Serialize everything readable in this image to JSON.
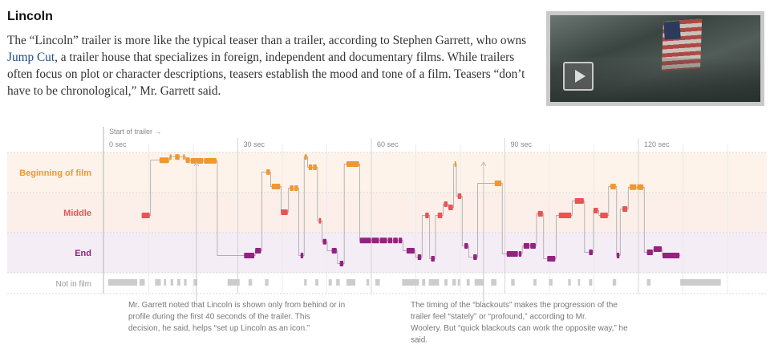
{
  "heading": "Lincoln",
  "intro": {
    "before_link": "The “Lincoln” trailer is more like the typical teaser than a trailer, according to Stephen Garrett, who owns ",
    "link_text": "Jump Cut",
    "after_link": ", a trailer house that specializes in foreign, independent and documentary films. While trailers often focus on plot or character descriptions, teasers establish the mood and tone of a film. Teasers “don’t have to be chronological,” Mr. Garrett said."
  },
  "video": {
    "icon": "play-icon"
  },
  "colors": {
    "beginning": "#f0972f",
    "middle": "#ea5353",
    "end": "#952181",
    "missing": "#cccccc",
    "band_beginning": "#fdf3ea",
    "band_middle": "#fcefea",
    "band_end": "#f5edf5"
  },
  "chart_data": {
    "type": "timeline",
    "start_label": "Start of trailer →",
    "x_ticks": [
      "0 sec",
      "30 sec",
      "60 sec",
      "90 sec",
      "120 sec"
    ],
    "x_tick_values": [
      0,
      30,
      60,
      90,
      120
    ],
    "xlim": [
      0,
      132
    ],
    "rows": [
      "Beginning of film",
      "Middle",
      "End",
      "Not in film"
    ],
    "row_keys": [
      "beginning",
      "middle",
      "end",
      "none"
    ],
    "segments": [
      {
        "start": 7.5,
        "end": 9.5,
        "row": "middle"
      },
      {
        "start": 11.5,
        "end": 13.8,
        "row": "beginning"
      },
      {
        "start": 13.8,
        "end": 14.4,
        "row": "beginning"
      },
      {
        "start": 15.0,
        "end": 16.2,
        "row": "beginning"
      },
      {
        "start": 16.8,
        "end": 17.4,
        "row": "beginning"
      },
      {
        "start": 17.4,
        "end": 18.5,
        "row": "beginning"
      },
      {
        "start": 18.5,
        "end": 21.5,
        "row": "beginning"
      },
      {
        "start": 21.5,
        "end": 24.5,
        "row": "beginning"
      },
      {
        "start": 30.5,
        "end": 33.0,
        "row": "end"
      },
      {
        "start": 33.0,
        "end": 34.5,
        "row": "end"
      },
      {
        "start": 35.5,
        "end": 36.5,
        "row": "beginning"
      },
      {
        "start": 36.7,
        "end": 38.8,
        "row": "beginning"
      },
      {
        "start": 38.8,
        "end": 40.5,
        "row": "middle"
      },
      {
        "start": 40.8,
        "end": 41.8,
        "row": "beginning"
      },
      {
        "start": 41.8,
        "end": 42.8,
        "row": "beginning"
      },
      {
        "start": 43.2,
        "end": 44.0,
        "row": "end"
      },
      {
        "start": 44.1,
        "end": 44.8,
        "row": "beginning"
      },
      {
        "start": 45.0,
        "end": 46.0,
        "row": "beginning"
      },
      {
        "start": 46.0,
        "end": 47.0,
        "row": "beginning"
      },
      {
        "start": 47.3,
        "end": 48.0,
        "row": "middle"
      },
      {
        "start": 48.2,
        "end": 49.2,
        "row": "end"
      },
      {
        "start": 50.2,
        "end": 51.5,
        "row": "end"
      },
      {
        "start": 52.0,
        "end": 53.0,
        "row": "end"
      },
      {
        "start": 53.5,
        "end": 56.5,
        "row": "beginning"
      },
      {
        "start": 56.5,
        "end": 59.2,
        "row": "end"
      },
      {
        "start": 59.2,
        "end": 61.0,
        "row": "end"
      },
      {
        "start": 61.0,
        "end": 62.8,
        "row": "end"
      },
      {
        "start": 62.8,
        "end": 64.0,
        "row": "end"
      },
      {
        "start": 64.0,
        "end": 65.2,
        "row": "end"
      },
      {
        "start": 65.2,
        "end": 66.2,
        "row": "end"
      },
      {
        "start": 67.0,
        "end": 69.0,
        "row": "end"
      },
      {
        "start": 69.5,
        "end": 70.5,
        "row": "end"
      },
      {
        "start": 71.2,
        "end": 72.2,
        "row": "middle"
      },
      {
        "start": 72.5,
        "end": 73.5,
        "row": "end"
      },
      {
        "start": 74.0,
        "end": 75.2,
        "row": "middle"
      },
      {
        "start": 75.4,
        "end": 76.4,
        "row": "middle"
      },
      {
        "start": 76.4,
        "end": 77.6,
        "row": "middle"
      },
      {
        "start": 77.8,
        "end": 78.2,
        "row": "beginning"
      },
      {
        "start": 78.5,
        "end": 79.5,
        "row": "middle"
      },
      {
        "start": 80.0,
        "end": 81.0,
        "row": "end"
      },
      {
        "start": 82.0,
        "end": 83.0,
        "row": "end"
      },
      {
        "start": 86.8,
        "end": 88.5,
        "row": "beginning"
      },
      {
        "start": 89.5,
        "end": 92.2,
        "row": "end"
      },
      {
        "start": 92.2,
        "end": 93.0,
        "row": "end"
      },
      {
        "start": 93.3,
        "end": 94.8,
        "row": "end"
      },
      {
        "start": 94.8,
        "end": 96.2,
        "row": "end"
      },
      {
        "start": 96.5,
        "end": 97.8,
        "row": "middle"
      },
      {
        "start": 98.6,
        "end": 100.6,
        "row": "end"
      },
      {
        "start": 101.2,
        "end": 104.2,
        "row": "middle"
      },
      {
        "start": 104.8,
        "end": 107.0,
        "row": "middle"
      },
      {
        "start": 108.0,
        "end": 109.0,
        "row": "end"
      },
      {
        "start": 109.0,
        "end": 110.2,
        "row": "middle"
      },
      {
        "start": 110.5,
        "end": 112.4,
        "row": "middle"
      },
      {
        "start": 112.8,
        "end": 114.2,
        "row": "beginning"
      },
      {
        "start": 114.2,
        "end": 115.0,
        "row": "end"
      },
      {
        "start": 115.5,
        "end": 116.8,
        "row": "middle"
      },
      {
        "start": 117.1,
        "end": 118.8,
        "row": "beginning"
      },
      {
        "start": 118.8,
        "end": 120.4,
        "row": "beginning"
      },
      {
        "start": 121.0,
        "end": 122.5,
        "row": "end"
      },
      {
        "start": 122.5,
        "end": 124.5,
        "row": "end"
      },
      {
        "start": 124.5,
        "end": 128.5,
        "row": "end"
      }
    ],
    "row_levels": [
      {
        "start": 7.5,
        "end": 9.5,
        "level": 0.55
      },
      {
        "start": 11.5,
        "end": 13.8,
        "level": 0.08
      },
      {
        "start": 13.8,
        "end": 14.4,
        "level": -0.02
      },
      {
        "start": 15.0,
        "end": 16.2,
        "level": -0.02
      },
      {
        "start": 16.8,
        "end": 17.4,
        "level": -0.02
      },
      {
        "start": 17.4,
        "end": 18.5,
        "level": 0.08
      },
      {
        "start": 18.5,
        "end": 21.5,
        "level": 0.1
      },
      {
        "start": 21.5,
        "end": 24.5,
        "level": 0.1
      },
      {
        "start": 30.5,
        "end": 33.0,
        "level": 0.55
      },
      {
        "start": 33.0,
        "end": 34.5,
        "level": 0.4
      },
      {
        "start": 35.5,
        "end": 36.5,
        "level": 0.45
      },
      {
        "start": 36.7,
        "end": 38.8,
        "level": 0.9
      },
      {
        "start": 38.8,
        "end": 40.5,
        "level": 0.45
      },
      {
        "start": 40.8,
        "end": 41.8,
        "level": 0.95
      },
      {
        "start": 41.8,
        "end": 42.8,
        "level": 0.95
      },
      {
        "start": 43.2,
        "end": 44.0,
        "level": 0.55
      },
      {
        "start": 44.1,
        "end": 44.8,
        "level": -0.02
      },
      {
        "start": 45.0,
        "end": 46.0,
        "level": 0.3
      },
      {
        "start": 46.0,
        "end": 47.0,
        "level": 0.3
      },
      {
        "start": 47.3,
        "end": 48.0,
        "level": 0.72
      },
      {
        "start": 48.2,
        "end": 49.2,
        "level": 0.12
      },
      {
        "start": 50.2,
        "end": 51.5,
        "level": 0.4
      },
      {
        "start": 52.0,
        "end": 53.0,
        "level": 0.8
      },
      {
        "start": 53.5,
        "end": 56.5,
        "level": 0.2
      },
      {
        "start": 56.5,
        "end": 59.2,
        "level": 0.08
      },
      {
        "start": 59.2,
        "end": 61.0,
        "level": 0.08
      },
      {
        "start": 61.0,
        "end": 62.8,
        "level": 0.08
      },
      {
        "start": 62.8,
        "end": 64.0,
        "level": 0.08
      },
      {
        "start": 64.0,
        "end": 65.2,
        "level": 0.08
      },
      {
        "start": 65.2,
        "end": 66.2,
        "level": 0.08
      },
      {
        "start": 67.0,
        "end": 69.0,
        "level": 0.4
      },
      {
        "start": 69.5,
        "end": 70.5,
        "level": 0.6
      },
      {
        "start": 71.2,
        "end": 72.2,
        "level": 0.55
      },
      {
        "start": 72.5,
        "end": 73.5,
        "level": 0.65
      },
      {
        "start": 74.0,
        "end": 75.2,
        "level": 0.55
      },
      {
        "start": 75.4,
        "end": 76.4,
        "level": 0.2
      },
      {
        "start": 76.4,
        "end": 77.6,
        "level": 0.3
      },
      {
        "start": 77.8,
        "end": 78.2,
        "level": 0.2
      },
      {
        "start": 78.5,
        "end": 79.5,
        "level": -0.05
      },
      {
        "start": 80.0,
        "end": 81.0,
        "level": 0.25
      },
      {
        "start": 82.0,
        "end": 83.0,
        "level": 0.6
      },
      {
        "start": 86.8,
        "end": 88.5,
        "level": 0.8
      },
      {
        "start": 89.5,
        "end": 92.2,
        "level": 0.5
      },
      {
        "start": 92.2,
        "end": 93.0,
        "level": 0.5
      },
      {
        "start": 93.3,
        "end": 94.8,
        "level": 0.25
      },
      {
        "start": 94.8,
        "end": 96.2,
        "level": 0.25
      },
      {
        "start": 96.5,
        "end": 97.8,
        "level": 0.5
      },
      {
        "start": 98.6,
        "end": 100.6,
        "level": 0.65
      },
      {
        "start": 101.2,
        "end": 104.2,
        "level": 0.55
      },
      {
        "start": 104.8,
        "end": 107.0,
        "level": 0.1
      },
      {
        "start": 108.0,
        "end": 109.0,
        "level": 0.45
      },
      {
        "start": 109.0,
        "end": 110.2,
        "level": 0.4
      },
      {
        "start": 110.5,
        "end": 112.4,
        "level": 0.55
      },
      {
        "start": 112.8,
        "end": 114.2,
        "level": 0.9
      },
      {
        "start": 114.2,
        "end": 115.0,
        "level": 0.55
      },
      {
        "start": 115.5,
        "end": 116.8,
        "level": 0.35
      },
      {
        "start": 117.1,
        "end": 118.8,
        "level": 0.92
      },
      {
        "start": 118.8,
        "end": 120.4,
        "level": 0.92
      },
      {
        "start": 121.0,
        "end": 122.5,
        "level": 0.45
      },
      {
        "start": 122.5,
        "end": 124.5,
        "level": 0.35
      },
      {
        "start": 124.5,
        "end": 128.5,
        "level": 0.55
      }
    ],
    "blackouts": [
      [
        0,
        6.5
      ],
      [
        7.0,
        8.2
      ],
      [
        10.5,
        11.8
      ],
      [
        12.5,
        13.0
      ],
      [
        14.0,
        14.6
      ],
      [
        15.5,
        16.2
      ],
      [
        17.0,
        17.6
      ],
      [
        19.2,
        20.0
      ],
      [
        26.8,
        29.5
      ],
      [
        31.5,
        32.3
      ],
      [
        35.2,
        36.0
      ],
      [
        44.0,
        44.6
      ],
      [
        46.5,
        47.2
      ],
      [
        49.5,
        50.2
      ],
      [
        51.2,
        52.0
      ],
      [
        53.5,
        55.5
      ],
      [
        58.0,
        58.6
      ],
      [
        60.0,
        61.0
      ],
      [
        66.0,
        69.8
      ],
      [
        70.5,
        71.2
      ],
      [
        72.0,
        74.3
      ],
      [
        75.5,
        76.2
      ],
      [
        77.3,
        78.1
      ],
      [
        78.5,
        79.0
      ],
      [
        80.5,
        81.2
      ],
      [
        82.3,
        84.3
      ],
      [
        86.0,
        87.2
      ],
      [
        90.5,
        91.3
      ],
      [
        95.5,
        96.2
      ],
      [
        99.0,
        99.8
      ],
      [
        103.3,
        103.9
      ],
      [
        105.5,
        106.0
      ],
      [
        108.0,
        108.7
      ],
      [
        113.3,
        114.1
      ],
      [
        121.0,
        121.8
      ],
      [
        128.5,
        137.6
      ]
    ],
    "annotations": [
      {
        "at_sec": 19.8,
        "text": "Mr. Garrett noted that Lincoln is shown only from behind or in profile during the first 40 seconds of the trailer. This decision, he said, helps “set up Lincoln as an icon.”"
      },
      {
        "at_sec": 84.3,
        "text": "The timing of the “blackouts” makes the progression of the trailer feel “stately” or “profound,” according to Mr. Woolery. But “quick blackouts can work the opposite way,” he said."
      }
    ]
  }
}
